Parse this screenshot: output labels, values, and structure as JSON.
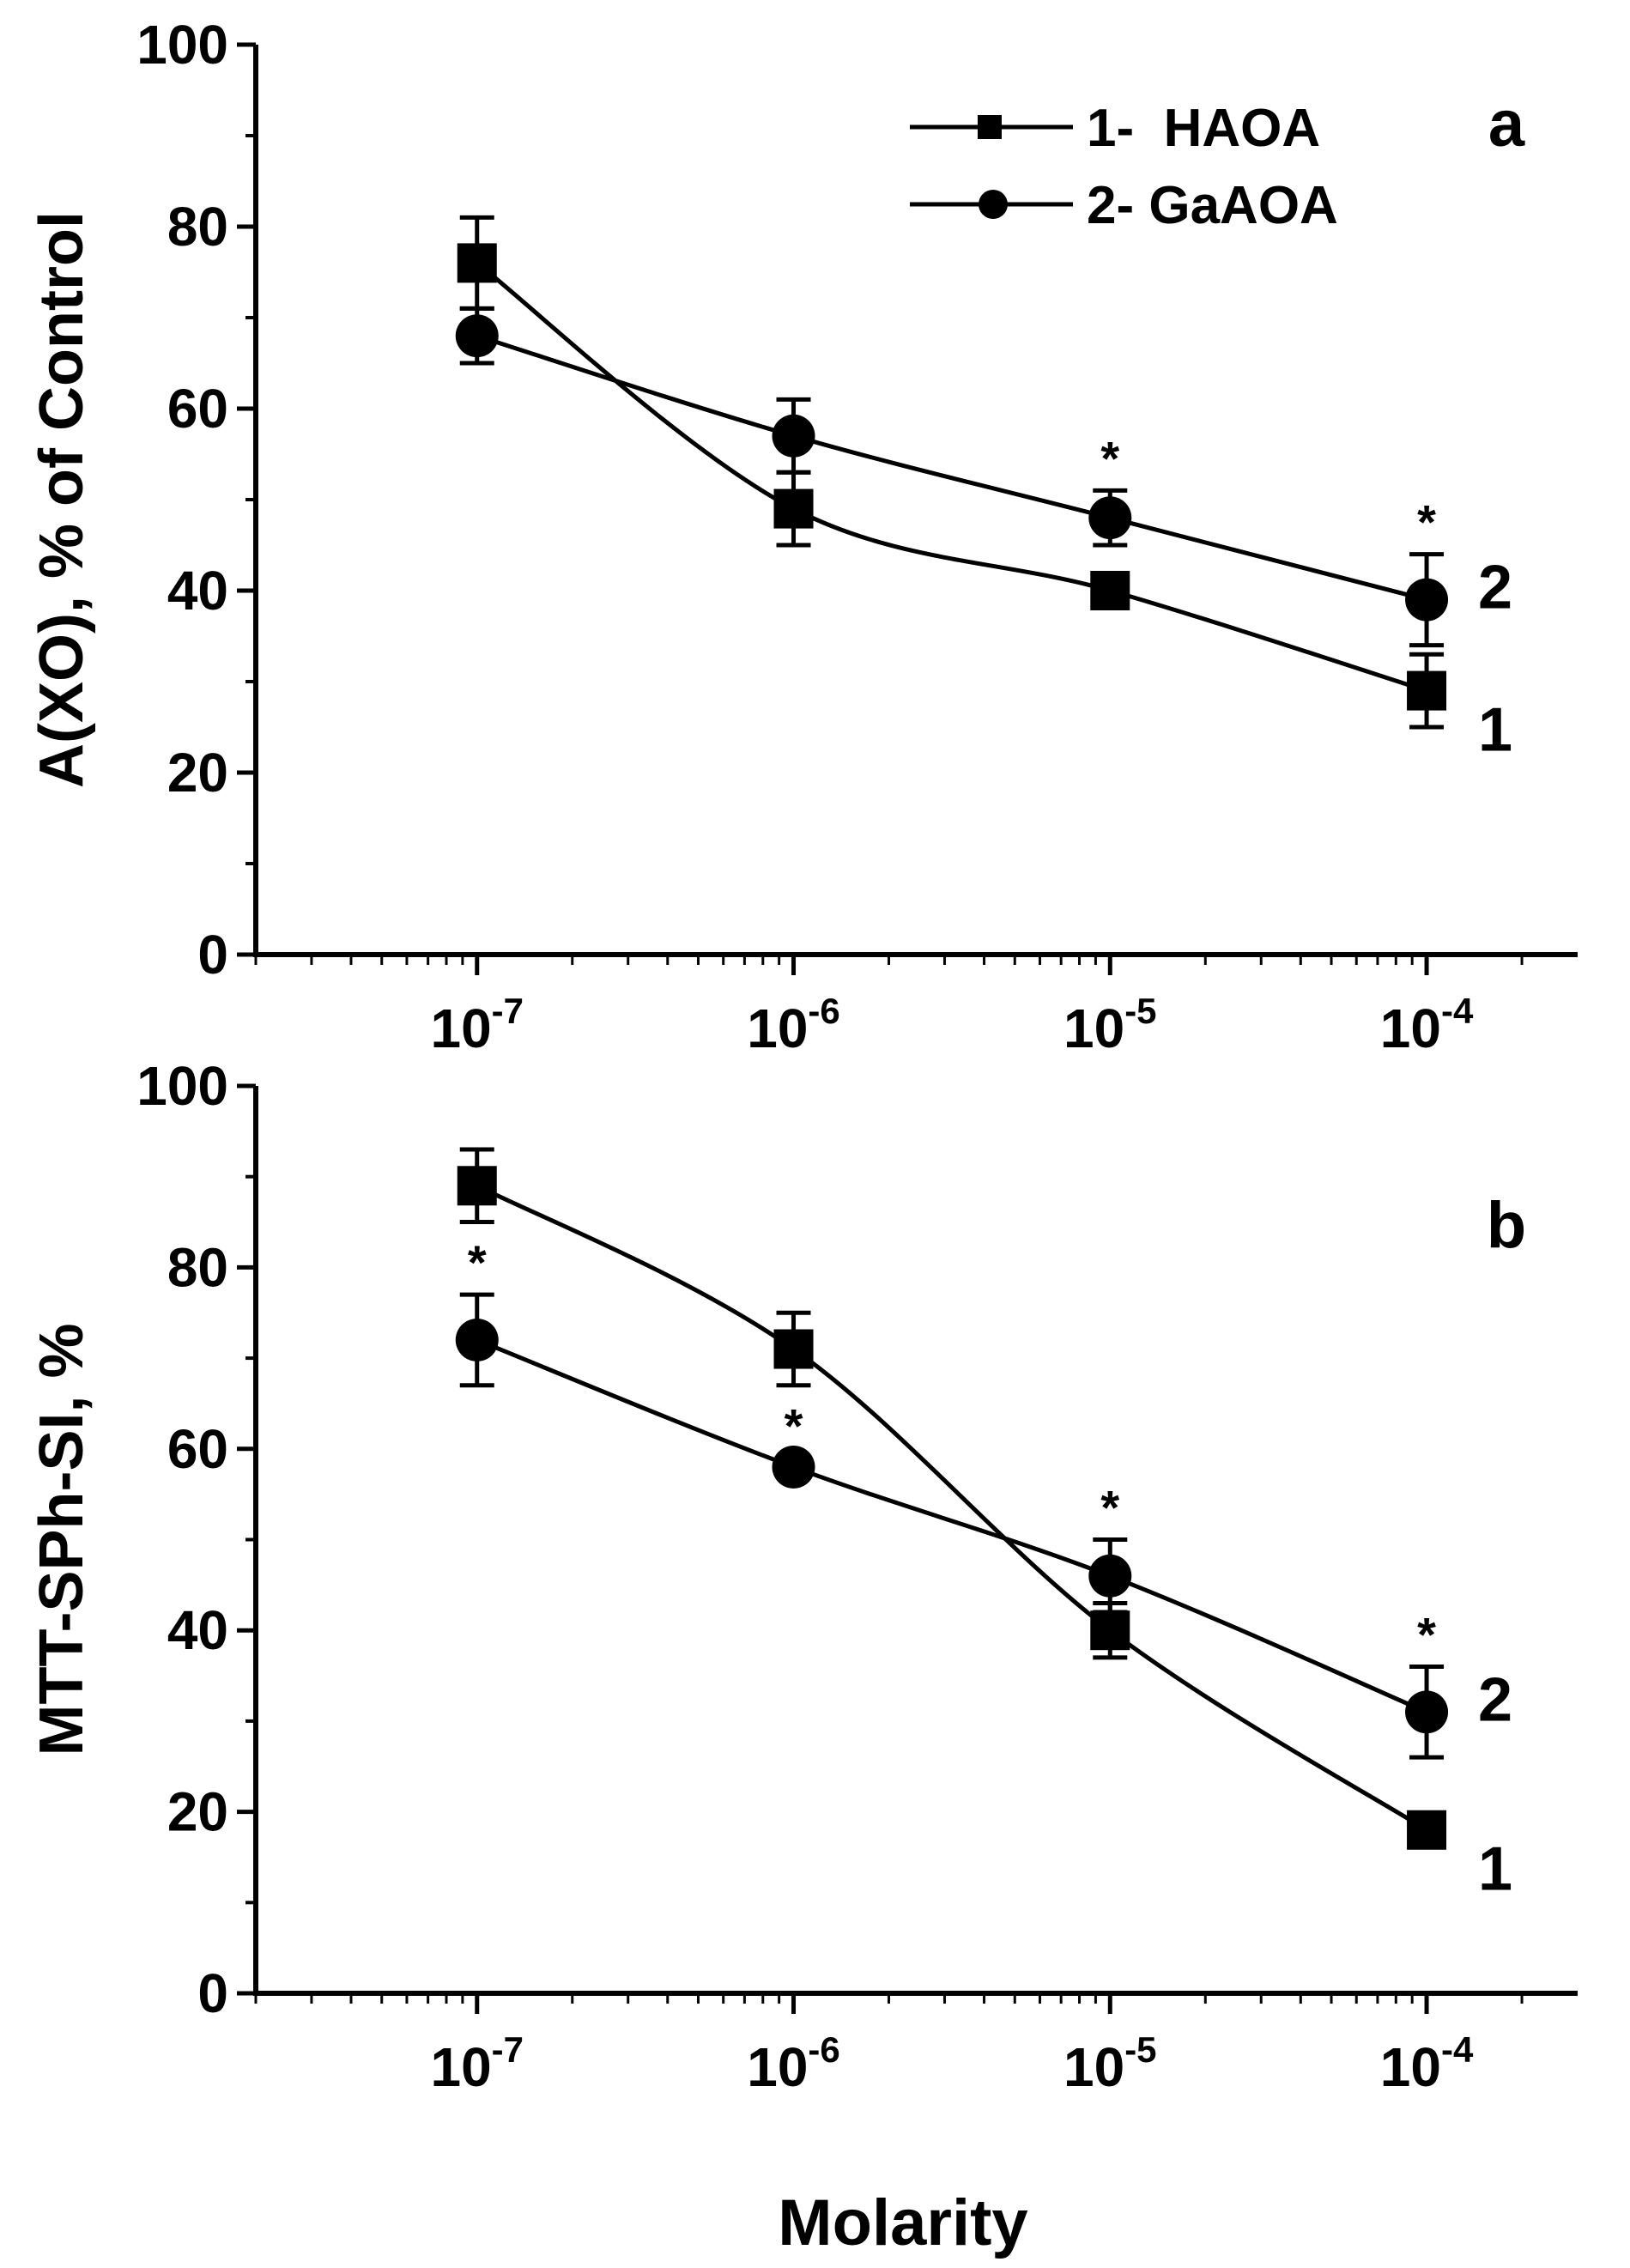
{
  "figure": {
    "xlabel": "Molarity"
  },
  "legend": [
    {
      "marker": "square",
      "label": "1-  HAOA"
    },
    {
      "marker": "circle",
      "label": "2- GaAOA"
    }
  ],
  "chart_data": [
    {
      "type": "line",
      "panel_label": "a",
      "title": "",
      "xlabel": "Molarity",
      "ylabel": "A(XO), % of Control",
      "xscale": "log",
      "xlim": [
        2e-08,
        0.0003
      ],
      "ylim": [
        0,
        100
      ],
      "yticks": [
        0,
        20,
        40,
        60,
        80,
        100
      ],
      "xticks": [
        {
          "value": 1e-07,
          "base": "10",
          "exp": "-7"
        },
        {
          "value": 1e-06,
          "base": "10",
          "exp": "-6"
        },
        {
          "value": 1e-05,
          "base": "10",
          "exp": "-5"
        },
        {
          "value": 0.0001,
          "base": "10",
          "exp": "-4"
        }
      ],
      "grid": false,
      "legend_position": "top-right",
      "series": [
        {
          "name": "1- HAOA",
          "curve_label": "1",
          "marker": "square",
          "x": [
            1e-07,
            1e-06,
            1e-05,
            0.0001
          ],
          "y": [
            76,
            49,
            40,
            29
          ],
          "err": [
            5,
            4,
            1,
            4
          ],
          "significant": [
            false,
            false,
            false,
            false
          ]
        },
        {
          "name": "2- GaAOA",
          "curve_label": "2",
          "marker": "circle",
          "x": [
            1e-07,
            1e-06,
            1e-05,
            0.0001
          ],
          "y": [
            68,
            57,
            48,
            39
          ],
          "err": [
            3,
            4,
            3,
            5
          ],
          "significant": [
            false,
            false,
            true,
            true
          ]
        }
      ],
      "annotation": "*"
    },
    {
      "type": "line",
      "panel_label": "b",
      "title": "",
      "xlabel": "Molarity",
      "ylabel": "MTT-SPh-SI, %",
      "xscale": "log",
      "xlim": [
        2e-08,
        0.0003
      ],
      "ylim": [
        0,
        100
      ],
      "yticks": [
        0,
        20,
        40,
        60,
        80,
        100
      ],
      "xticks": [
        {
          "value": 1e-07,
          "base": "10",
          "exp": "-7"
        },
        {
          "value": 1e-06,
          "base": "10",
          "exp": "-6"
        },
        {
          "value": 1e-05,
          "base": "10",
          "exp": "-5"
        },
        {
          "value": 0.0001,
          "base": "10",
          "exp": "-4"
        }
      ],
      "grid": false,
      "series": [
        {
          "name": "1- HAOA",
          "curve_label": "1",
          "marker": "square",
          "x": [
            1e-07,
            1e-06,
            1e-05,
            0.0001
          ],
          "y": [
            89,
            71,
            40,
            18
          ],
          "err": [
            4,
            4,
            3,
            1
          ],
          "significant": [
            false,
            false,
            false,
            false
          ]
        },
        {
          "name": "2- GaAOA",
          "curve_label": "2",
          "marker": "circle",
          "x": [
            1e-07,
            1e-06,
            1e-05,
            0.0001
          ],
          "y": [
            72,
            58,
            46,
            31
          ],
          "err": [
            5,
            1,
            4,
            5
          ],
          "significant": [
            true,
            true,
            true,
            true
          ]
        }
      ],
      "annotation": "*"
    }
  ]
}
